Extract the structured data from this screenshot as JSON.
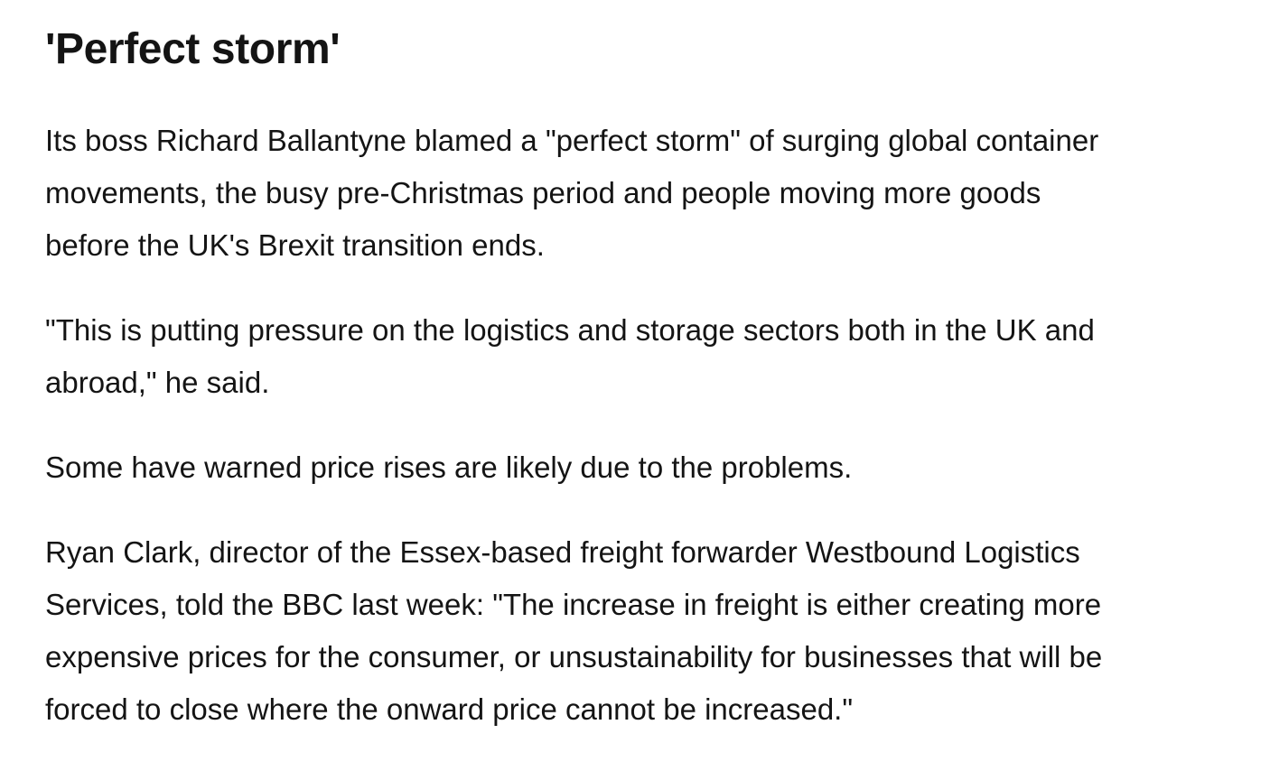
{
  "heading": "'Perfect storm'",
  "paragraphs": [
    {
      "lines": [
        "Its boss Richard Ballantyne blamed a \"perfect storm\" of surging global container",
        "movements, the busy pre-Christmas period and people moving more goods",
        "before the UK's Brexit transition ends."
      ]
    },
    {
      "lines": [
        "\"This is putting pressure on the logistics and storage sectors both in the UK and",
        "abroad,\" he said."
      ]
    },
    {
      "lines": [
        "Some have warned price rises are likely due to the problems."
      ]
    },
    {
      "lines": [
        "Ryan Clark, director of the Essex-based freight forwarder Westbound Logistics",
        "Services, told the BBC last week: \"The increase in freight is either creating more",
        "expensive prices for the consumer, or unsustainability for businesses that will be",
        "forced to close where the onward price cannot be increased.\""
      ]
    }
  ]
}
